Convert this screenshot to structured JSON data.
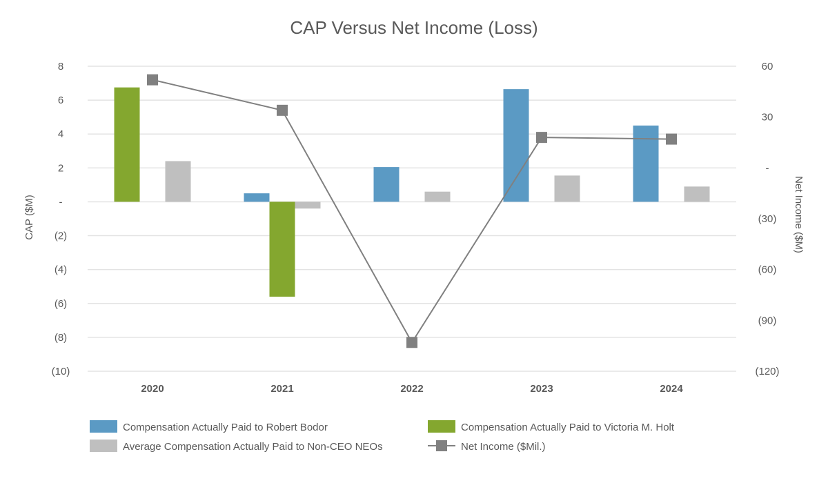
{
  "chart_data": {
    "type": "bar+line",
    "title": "CAP Versus Net Income (Loss)",
    "categories": [
      "2020",
      "2021",
      "2022",
      "2023",
      "2024"
    ],
    "ylabel": "CAP ($M)",
    "y2label": "Net Income ($M)",
    "ylim": [
      -10,
      8
    ],
    "y2lim": [
      -120,
      60
    ],
    "y_ticks": [
      8,
      6,
      4,
      2,
      0,
      -2,
      -4,
      -6,
      -8,
      -10
    ],
    "y_tick_labels": [
      "8",
      "6",
      "4",
      "2",
      "-",
      "(2)",
      "(4)",
      "(6)",
      "(8)",
      "(10)"
    ],
    "y2_ticks": [
      60,
      30,
      0,
      -30,
      -60,
      -90,
      -120
    ],
    "y2_tick_labels": [
      "60",
      "30",
      "-",
      "(30)",
      "(60)",
      "(90)",
      "(120)"
    ],
    "grid": true,
    "legend_position": "bottom",
    "series": [
      {
        "name": "Compensation Actually Paid to Robert Bodor",
        "type": "bar",
        "color": "#5b9ac4",
        "values": [
          null,
          0.5,
          2.05,
          6.65,
          4.5
        ]
      },
      {
        "name": "Compensation Actually Paid to Victoria M. Holt",
        "type": "bar",
        "color": "#84a72f",
        "values": [
          6.75,
          -5.6,
          null,
          null,
          null
        ]
      },
      {
        "name": "Average Compensation Actually Paid to Non-CEO NEOs",
        "type": "bar",
        "color": "#bfbfbf",
        "values": [
          2.4,
          -0.4,
          0.6,
          1.55,
          0.9
        ]
      },
      {
        "name": "Net Income ($Mil.)",
        "type": "line",
        "axis": "secondary",
        "color": "#808080",
        "values": [
          52,
          34,
          -103,
          18,
          17
        ]
      }
    ]
  }
}
